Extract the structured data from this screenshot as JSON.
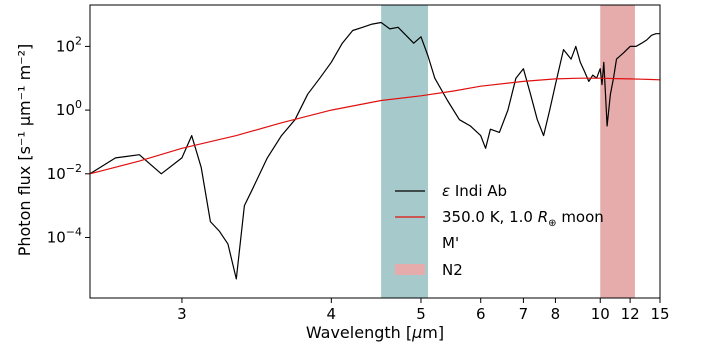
{
  "chart_data": {
    "type": "line",
    "xlabel_pre": "Wavelength [",
    "xlabel_mu": "μ",
    "xlabel_post": "m]",
    "ylabel": "Photon flux [s⁻¹ μm⁻¹ m⁻²]",
    "x_scale": "reciprocal",
    "y_scale": "log",
    "xlim": [
      2.6,
      15
    ],
    "ylim_log10": [
      -5.9,
      3.3
    ],
    "x_ticks": [
      {
        "value": 3,
        "label": "3"
      },
      {
        "value": 4,
        "label": "4"
      },
      {
        "value": 5,
        "label": "5"
      },
      {
        "value": 6,
        "label": "6"
      },
      {
        "value": 7,
        "label": "7"
      },
      {
        "value": 8,
        "label": "8"
      },
      {
        "value": 10,
        "label": "10"
      },
      {
        "value": 12,
        "label": "12"
      },
      {
        "value": 15,
        "label": "15"
      }
    ],
    "y_ticks": [
      {
        "exp": 2,
        "base": "10",
        "sup": "2"
      },
      {
        "exp": 0,
        "base": "10",
        "sup": "0"
      },
      {
        "exp": -2,
        "base": "10",
        "sup": "−2"
      },
      {
        "exp": -4,
        "base": "10",
        "sup": "−4"
      }
    ],
    "grid": false,
    "legend_position": "lower-right",
    "bands": [
      {
        "name": "M'",
        "x_start": 4.5,
        "x_end": 5.1,
        "color": "#a6cacb"
      },
      {
        "name": "N2",
        "x_start": 10.0,
        "x_end": 12.4,
        "color": "#e6abab"
      }
    ],
    "series": [
      {
        "name": "ε Indi Ab",
        "legend_symbol": "ε",
        "legend_text": " Indi Ab",
        "color": "#000000",
        "x": [
          2.6,
          2.7,
          2.8,
          2.9,
          3.0,
          3.05,
          3.1,
          3.15,
          3.2,
          3.25,
          3.3,
          3.35,
          3.4,
          3.5,
          3.6,
          3.7,
          3.8,
          3.9,
          4.0,
          4.1,
          4.2,
          4.3,
          4.4,
          4.5,
          4.6,
          4.7,
          4.8,
          4.9,
          5.0,
          5.1,
          5.2,
          5.4,
          5.6,
          5.8,
          6.0,
          6.1,
          6.2,
          6.4,
          6.6,
          6.8,
          7.0,
          7.2,
          7.4,
          7.6,
          7.8,
          8.0,
          8.3,
          8.6,
          8.8,
          9.0,
          9.2,
          9.4,
          9.6,
          9.8,
          10.0,
          10.1,
          10.2,
          10.3,
          10.4,
          10.6,
          10.8,
          11.0,
          11.5,
          12.0,
          12.5,
          13.0,
          13.5,
          14.0,
          14.5,
          15.0
        ],
        "y_log10": [
          -2.0,
          -1.5,
          -1.4,
          -2.0,
          -1.5,
          -0.8,
          -1.8,
          -3.5,
          -3.8,
          -4.2,
          -5.3,
          -3.0,
          -2.5,
          -1.5,
          -0.8,
          -0.3,
          0.5,
          1.0,
          1.5,
          2.1,
          2.5,
          2.6,
          2.7,
          2.75,
          2.55,
          2.6,
          2.35,
          2.1,
          2.3,
          1.7,
          1.0,
          0.3,
          -0.3,
          -0.5,
          -0.8,
          -1.2,
          -0.6,
          -0.7,
          0.0,
          1.0,
          1.3,
          0.5,
          -0.3,
          -0.8,
          0.0,
          0.8,
          1.9,
          1.6,
          2.0,
          1.5,
          1.2,
          0.9,
          1.1,
          1.0,
          1.3,
          0.8,
          1.5,
          0.5,
          -0.5,
          0.5,
          1.0,
          1.6,
          1.8,
          2.0,
          2.0,
          2.1,
          2.2,
          2.35,
          2.4,
          2.4
        ]
      },
      {
        "name": "350.0 K, 1.0 R⊕ moon",
        "legend_pre": "350.0 K, 1.0 ",
        "legend_sym": "R",
        "legend_sub": "⊕",
        "legend_post": " moon",
        "color": "#e01010",
        "x": [
          2.6,
          2.8,
          3.0,
          3.3,
          3.6,
          4.0,
          4.5,
          5.0,
          5.5,
          6.0,
          7.0,
          8.0,
          9.0,
          10.0,
          11.0,
          12.0,
          13.0,
          14.0,
          15.0
        ],
        "y_log10": [
          -2.0,
          -1.6,
          -1.2,
          -0.8,
          -0.4,
          0.0,
          0.3,
          0.45,
          0.6,
          0.75,
          0.9,
          0.98,
          1.0,
          1.0,
          0.99,
          0.98,
          0.97,
          0.96,
          0.95
        ]
      }
    ]
  }
}
